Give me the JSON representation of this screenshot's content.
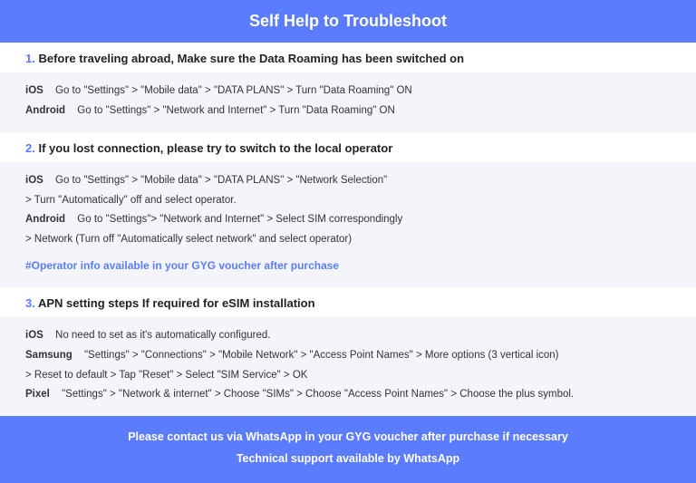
{
  "header": {
    "title": "Self Help to Troubleshoot"
  },
  "sections": [
    {
      "num": "1.",
      "prefix": "Before traveling abroad, ",
      "title": "Make sure the Data Roaming has been switched on",
      "rows": [
        {
          "platform": "iOS",
          "text": "Go to \"Settings\" > \"Mobile data\" > \"DATA PLANS\" > Turn \"Data Roaming\" ON"
        },
        {
          "platform": "Android",
          "text": "Go to \"Settings\" > \"Network and Internet\" > Turn \"Data Roaming\" ON"
        }
      ],
      "note": ""
    },
    {
      "num": "2.",
      "prefix": "",
      "title": "If you lost connection, please try to switch to the local operator",
      "rows": [
        {
          "platform": "iOS",
          "text": "Go to \"Settings\" > \"Mobile data\" > \"DATA PLANS\" > \"Network Selection\"",
          "cont": "> Turn \"Automatically\" off and select operator."
        },
        {
          "platform": "Android",
          "text": "Go to \"Settings\">  \"Network and Internet\" > Select SIM correspondingly",
          "cont": "> Network (Turn off \"Automatically select network\" and select operator)"
        }
      ],
      "note": "#Operator info available in your GYG voucher after purchase"
    },
    {
      "num": "3.",
      "prefix": "",
      "title": "APN setting steps If required for eSIM installation",
      "rows": [
        {
          "platform": "iOS",
          "text": "No need to set as it's automatically configured."
        },
        {
          "platform": "Samsung",
          "text": "\"Settings\" > \"Connections\" > \"Mobile Network\" > \"Access Point Names\" > More options (3 vertical icon)",
          "cont": "> Reset to default > Tap \"Reset\" > Select \"SIM Service\" > OK"
        },
        {
          "platform": "Pixel",
          "text": "\"Settings\" > \"Network & internet\" > Choose \"SIMs\" > Choose \"Access Point Names\" > Choose the plus symbol."
        }
      ],
      "note": ""
    }
  ],
  "footer": {
    "line1": "Please contact us via WhatsApp  in your GYG voucher after purchase if necessary",
    "line2": "Technical support available by WhatsApp"
  },
  "colors": {
    "brand": "#5b7cff",
    "body_bg": "#f3f5fb",
    "text": "#333333"
  }
}
